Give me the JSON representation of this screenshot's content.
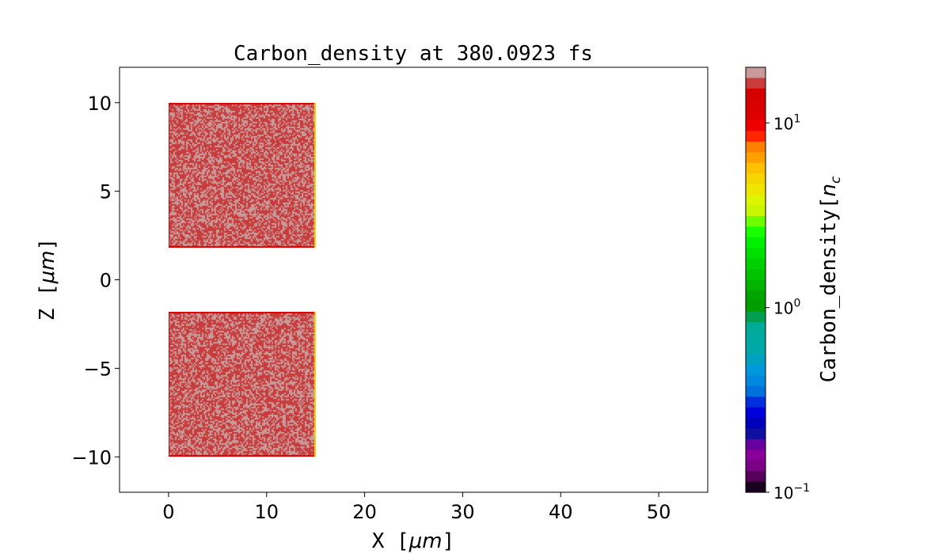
{
  "chart_data": {
    "type": "heatmap",
    "title": "Carbon_density at 380.0923 fs",
    "xlabel": "X",
    "xlabel_unit": "μm",
    "ylabel": "Z",
    "ylabel_unit": "μm",
    "xlim": [
      -5,
      55
    ],
    "ylim": [
      -12,
      12
    ],
    "xticks": [
      0,
      10,
      20,
      30,
      40,
      50
    ],
    "xtick_labels": [
      "0",
      "10",
      "20",
      "30",
      "40",
      "50"
    ],
    "yticks": [
      10,
      5,
      0,
      -5,
      -10
    ],
    "ytick_labels": [
      "10",
      "5",
      "0",
      "−5",
      "−10"
    ],
    "grid": false,
    "regions": [
      {
        "x": [
          0,
          15
        ],
        "z": [
          1.8,
          10
        ],
        "density_range": [
          12,
          20
        ]
      },
      {
        "x": [
          0,
          15
        ],
        "z": [
          -10,
          -1.8
        ],
        "density_range": [
          12,
          20
        ]
      }
    ],
    "background_value": "none",
    "colorbar": {
      "label": "Carbon_density",
      "label_unit": "n",
      "label_unit_sub": "c",
      "scale": "log",
      "range": [
        0.1,
        20
      ],
      "ticks": [
        0.1,
        1,
        10
      ],
      "tick_labels": [
        {
          "base": "10",
          "exp": "−1"
        },
        {
          "base": "10",
          "exp": "0"
        },
        {
          "base": "10",
          "exp": "1"
        }
      ],
      "colors_top_to_bottom": [
        "#c89a9a",
        "#c83c3c",
        "#d40000",
        "#d80000",
        "#dd0000",
        "#ee0000",
        "#ff2600",
        "#ff7f00",
        "#ffa000",
        "#ffc000",
        "#f6d500",
        "#eee600",
        "#dcf500",
        "#c8f500",
        "#6cff00",
        "#18ff00",
        "#00f000",
        "#00e000",
        "#00d000",
        "#00c400",
        "#00b400",
        "#00a400",
        "#009c00",
        "#00a050",
        "#00aa98",
        "#00aaa0",
        "#00a8a8",
        "#00a0c0",
        "#0098dc",
        "#0088dd",
        "#0070dd",
        "#0030dd",
        "#0000dd",
        "#0000bb",
        "#1010a0",
        "#6600a0",
        "#880098",
        "#7a0088",
        "#55005a",
        "#1a0020"
      ]
    }
  }
}
